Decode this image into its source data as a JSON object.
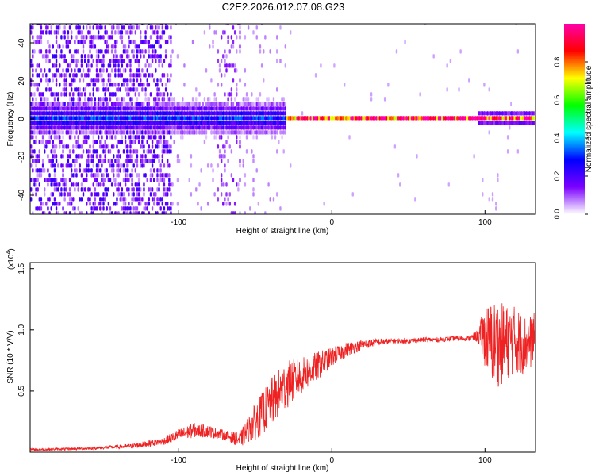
{
  "title": "C2E2.2026.012.07.08.G23",
  "chart_data": [
    {
      "type": "heatmap",
      "xlabel": "Height of straight line (km)",
      "ylabel": "Frequency (Hz)",
      "xlim": [
        -197,
        133
      ],
      "ylim": [
        -50,
        50
      ],
      "xticks": [
        -100,
        0,
        100
      ],
      "yticks": [
        -40,
        -20,
        0,
        20,
        40
      ],
      "colorbar": {
        "label": "Normalized spectral amplitude",
        "range": [
          0,
          1
        ],
        "ticks": [
          "0.0",
          "0.2",
          "0.4",
          "0.6",
          "0.8"
        ],
        "tick_values": [
          0.0,
          0.2,
          0.4,
          0.6,
          0.8
        ],
        "colormap": [
          "#ffffff",
          "#7b00ff",
          "#0000ff",
          "#00ffff",
          "#00ff00",
          "#ffff00",
          "#ff0000",
          "#ff00aa"
        ]
      },
      "ridge": {
        "description": "spectral ridge near 0 Hz",
        "segments": [
          {
            "x": [
              -197,
              -30
            ],
            "freq_hz": 0,
            "amplitude": 0.3
          },
          {
            "x": [
              -30,
              133
            ],
            "freq_hz": 0,
            "amplitude": 0.95
          }
        ]
      }
    },
    {
      "type": "line",
      "xlabel": "Height of straight line (km)",
      "ylabel": "SNR (10 * V/V)",
      "yscale_label": "(x10",
      "yscale_exp": "4",
      "xlim": [
        -197,
        133
      ],
      "ylim": [
        0,
        1.55
      ],
      "xticks": [
        -100,
        0,
        100
      ],
      "yticks": [
        0.5,
        1.0,
        1.5
      ],
      "ytick_labels": [
        "0.5",
        "1.0",
        "1.5"
      ],
      "series": [
        {
          "color": "#ee2222",
          "x": [
            -197,
            -160,
            -130,
            -110,
            -100,
            -90,
            -80,
            -70,
            -60,
            -50,
            -40,
            -30,
            -20,
            -10,
            0,
            10,
            20,
            30,
            40,
            50,
            60,
            70,
            80,
            90,
            95,
            100,
            105,
            110,
            115,
            120,
            125,
            130,
            133
          ],
          "y": [
            0.02,
            0.03,
            0.05,
            0.09,
            0.14,
            0.18,
            0.17,
            0.14,
            0.1,
            0.25,
            0.4,
            0.55,
            0.62,
            0.7,
            0.78,
            0.84,
            0.88,
            0.9,
            0.91,
            0.91,
            0.92,
            0.92,
            0.93,
            0.93,
            0.95,
            0.95,
            0.9,
            0.88,
            0.9,
            0.92,
            0.88,
            0.9,
            0.95
          ],
          "noise": [
            0.01,
            0.01,
            0.02,
            0.03,
            0.05,
            0.06,
            0.05,
            0.04,
            0.06,
            0.15,
            0.2,
            0.2,
            0.15,
            0.12,
            0.08,
            0.06,
            0.04,
            0.03,
            0.02,
            0.02,
            0.02,
            0.02,
            0.02,
            0.02,
            0.05,
            0.25,
            0.35,
            0.35,
            0.3,
            0.28,
            0.25,
            0.22,
            0.2
          ]
        }
      ]
    }
  ]
}
